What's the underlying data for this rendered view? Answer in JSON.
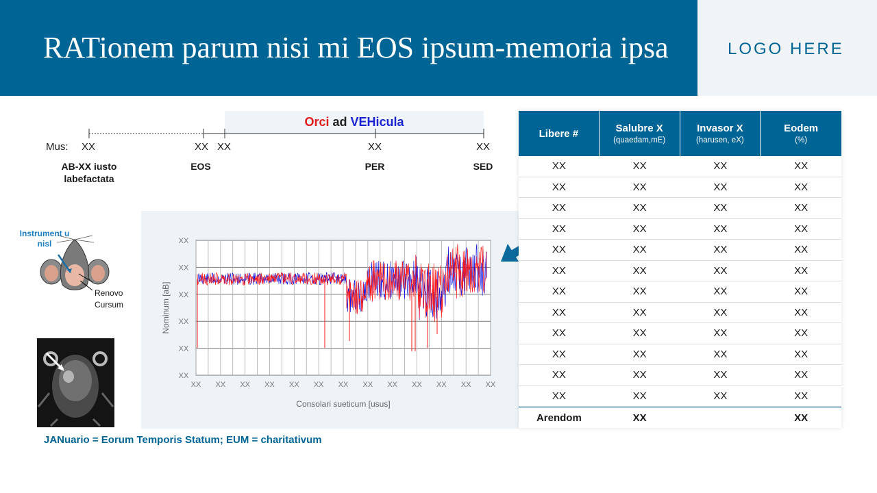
{
  "header": {
    "title": "RATionem parum nisi mi EOS ipsum-memoria ipsa",
    "logo": "LOGO HERE"
  },
  "timeline": {
    "band_label": {
      "part1": "Orci",
      "part2": "ad",
      "part3": "VEHicula"
    },
    "mus_label": "Mus:",
    "ticks": [
      "XX",
      "XX",
      "XX",
      "XX",
      "XX"
    ],
    "phases": [
      {
        "line1": "AB-XX iusto",
        "line2": "labefactata"
      },
      {
        "line1": "EOS",
        "line2": ""
      },
      {
        "line1": "PER",
        "line2": ""
      },
      {
        "line1": "SED",
        "line2": ""
      }
    ]
  },
  "illustration": {
    "instrument_label": "Instrument u nisl",
    "renovo_label": "Renovo Cursum"
  },
  "chart": {
    "ylabel": "Nominum [aB]",
    "xlabel": "Consolari sueticum [usus]",
    "y_ticks": [
      "XX",
      "XX",
      "XX",
      "XX",
      "XX",
      "XX"
    ],
    "x_ticks": [
      "XX",
      "XX",
      "XX",
      "XX",
      "XX",
      "XX",
      "XX",
      "XX",
      "XX",
      "XX",
      "XX",
      "XX",
      "XX"
    ],
    "series_colors": {
      "blue": "#1515e0",
      "red": "#ff1a1a"
    }
  },
  "footnote": "JANuario = Eorum Temporis Statum; EUM = charitativum",
  "table": {
    "headers": [
      {
        "title": "Libere #",
        "sub": ""
      },
      {
        "title": "Salubre X",
        "sub": "(quaedam,mE)"
      },
      {
        "title": "Invasor X",
        "sub": "(harusen, eX)"
      },
      {
        "title": "Eodem",
        "sub": "(%)"
      }
    ],
    "rows": [
      [
        "XX",
        "XX",
        "XX",
        "XX"
      ],
      [
        "XX",
        "XX",
        "XX",
        "XX"
      ],
      [
        "XX",
        "XX",
        "XX",
        "XX"
      ],
      [
        "XX",
        "XX",
        "XX",
        "XX"
      ],
      [
        "XX",
        "XX",
        "XX",
        "XX"
      ],
      [
        "XX",
        "XX",
        "XX",
        "XX"
      ],
      [
        "XX",
        "XX",
        "XX",
        "XX"
      ],
      [
        "XX",
        "XX",
        "XX",
        "XX"
      ],
      [
        "XX",
        "XX",
        "XX",
        "XX"
      ],
      [
        "XX",
        "XX",
        "XX",
        "XX"
      ],
      [
        "XX",
        "XX",
        "XX",
        "XX"
      ],
      [
        "XX",
        "XX",
        "XX",
        "XX"
      ]
    ],
    "summary": {
      "label": "Arendom",
      "col2": "XX",
      "col4": "XX"
    }
  },
  "colors": {
    "brand": "#006594",
    "light_panel": "#edf3f7"
  }
}
